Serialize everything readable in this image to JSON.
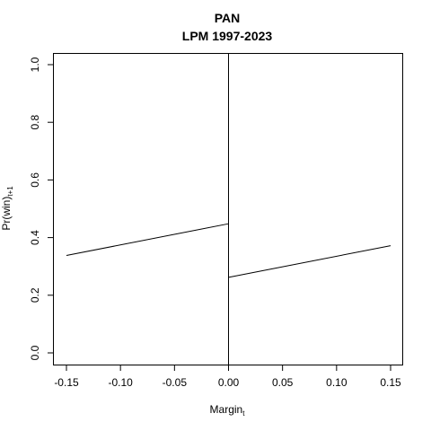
{
  "chart_data": {
    "type": "line",
    "title": "PAN",
    "subtitle": "LPM 1997-2023",
    "xlabel": "Margin",
    "xlabel_sub": "t",
    "ylabel": "Pr(win)",
    "ylabel_sub": "t+1",
    "xlim": [
      -0.15,
      0.15
    ],
    "ylim": [
      0,
      1
    ],
    "xticks": [
      -0.15,
      -0.1,
      -0.05,
      0.0,
      0.05,
      0.1,
      0.15
    ],
    "xtick_labels": [
      "-0.15",
      "-0.10",
      "-0.05",
      "0.00",
      "0.05",
      "0.10",
      "0.15"
    ],
    "yticks": [
      0,
      0.2,
      0.4,
      0.6,
      0.8,
      1.0
    ],
    "ytick_labels": [
      "0.0",
      "0.2",
      "0.4",
      "0.6",
      "0.8",
      "1.0"
    ],
    "cutoff_x": 0,
    "series": [
      {
        "x": [
          -0.15,
          0
        ],
        "y": [
          0.338,
          0.448
        ]
      },
      {
        "x": [
          0,
          0.15
        ],
        "y": [
          0.262,
          0.372
        ]
      }
    ]
  }
}
